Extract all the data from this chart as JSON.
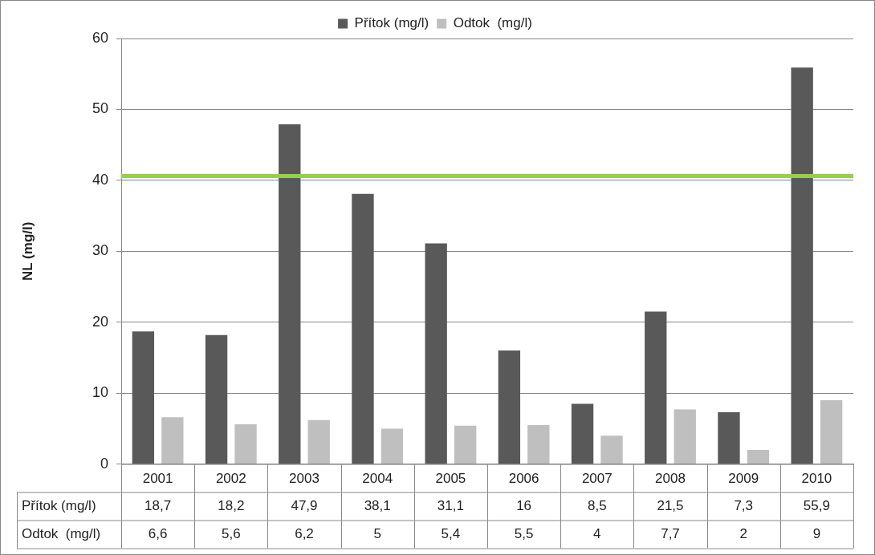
{
  "chart_data": {
    "type": "bar",
    "ylabel": "NL (mg/l)",
    "categories": [
      "2001",
      "2002",
      "2003",
      "2004",
      "2005",
      "2006",
      "2007",
      "2008",
      "2009",
      "2010"
    ],
    "series": [
      {
        "name": "Přítok (mg/l)",
        "color": "#595959",
        "values": [
          18.7,
          18.2,
          47.9,
          38.1,
          31.1,
          16,
          8.5,
          21.5,
          7.3,
          55.9
        ],
        "value_labels": [
          "18,7",
          "18,2",
          "47,9",
          "38,1",
          "31,1",
          "16",
          "8,5",
          "21,5",
          "7,3",
          "55,9"
        ]
      },
      {
        "name": "Odtok  (mg/l)",
        "color": "#bfbfbf",
        "values": [
          6.6,
          5.6,
          6.2,
          5,
          5.4,
          5.5,
          4,
          7.7,
          2,
          9
        ],
        "value_labels": [
          "6,6",
          "5,6",
          "6,2",
          "5",
          "5,4",
          "5,5",
          "4",
          "7,7",
          "2",
          "9"
        ]
      }
    ],
    "ylim": [
      0,
      60
    ],
    "yticks": [
      0,
      10,
      20,
      30,
      40,
      50,
      60
    ],
    "grid": "y",
    "legend": "top",
    "ref_lines": [
      {
        "axis": "y",
        "value": 40.6,
        "color": "#92d050"
      }
    ]
  }
}
